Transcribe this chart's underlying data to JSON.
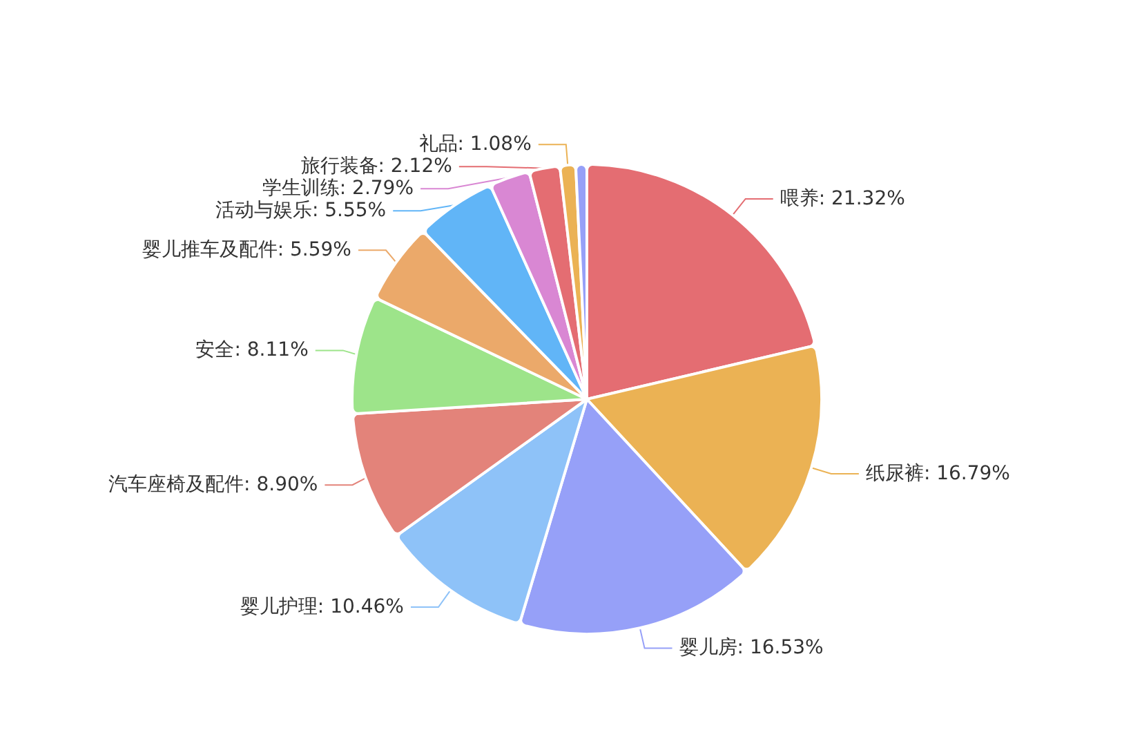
{
  "chart_data": {
    "type": "pie",
    "categories": [
      "喂养",
      "纸尿裤",
      "婴儿房",
      "婴儿护理",
      "汽车座椅及配件",
      "安全",
      "婴儿推车及配件",
      "活动与娱乐",
      "学生训练",
      "旅行装备",
      "礼品",
      null
    ],
    "values": [
      21.32,
      16.79,
      16.53,
      10.46,
      8.9,
      8.11,
      5.59,
      5.55,
      2.79,
      2.12,
      1.08,
      0.76
    ],
    "colors": [
      "#e46d72",
      "#ebb254",
      "#96a0f8",
      "#8ec2f8",
      "#e3837a",
      "#9de48a",
      "#eba96a",
      "#61b5f7",
      "#d987d3",
      "#e46d72",
      "#ebb254",
      "#96a0f8"
    ],
    "value_labels": [
      ": 21.32%",
      ": 16.79%",
      ": 16.53%",
      ": 10.46%",
      ": 8.90%",
      ": 8.11%",
      ": 5.59%",
      ": 5.55%",
      ": 2.79%",
      ": 2.12%",
      ": 1.08%",
      null
    ],
    "legend": false
  }
}
